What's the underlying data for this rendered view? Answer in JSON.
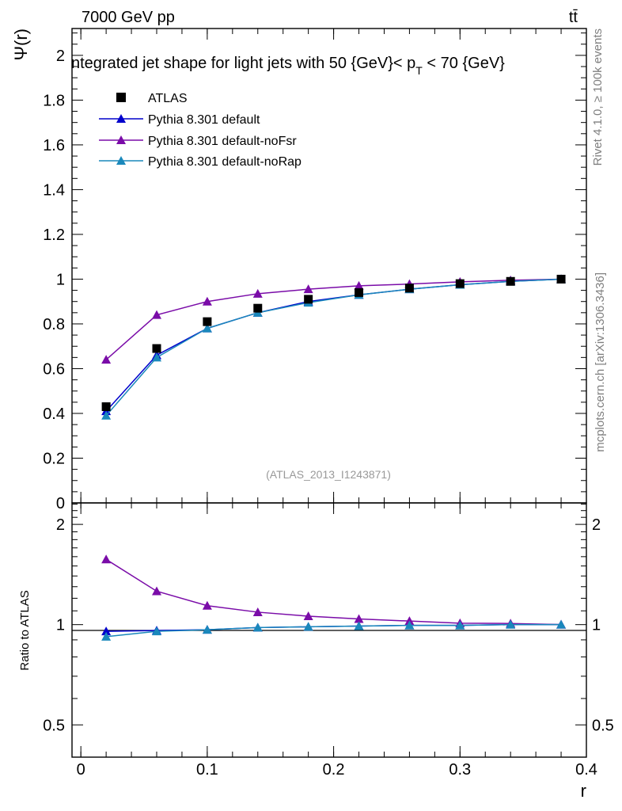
{
  "header": {
    "left": "7000 GeV pp",
    "right": "tt̄"
  },
  "side_labels": {
    "rivet": "Rivet 4.1.0, ≥ 100k events",
    "mcplots": "mcplots.cern.ch [arXiv:1306.3436]"
  },
  "chart_data": {
    "type": "line",
    "title_parts": {
      "before": "ntegrated jet shape for light jets with 50 {GeV}< p",
      "sub": "T",
      "after": " < 70 {GeV}"
    },
    "analysis_id": "(ATLAS_2013_I1243871)",
    "xlabel": "r",
    "ylabel_main": "Ψ(r)",
    "ylabel_ratio": "Ratio to ATLAS",
    "xlim": [
      -0.007,
      0.4
    ],
    "ylim_main": [
      0,
      2.12
    ],
    "ylim_ratio": [
      0.4,
      2.32
    ],
    "x_ticks": [
      0,
      0.1,
      0.2,
      0.3,
      0.4
    ],
    "x_tick_labels": [
      "0",
      "0.1",
      "0.2",
      "0.3",
      "0.4"
    ],
    "y_ticks_main": [
      0,
      0.2,
      0.4,
      0.6,
      0.8,
      1,
      1.2,
      1.4,
      1.6,
      1.8,
      2
    ],
    "y_tick_labels_main": [
      "0",
      "0.2",
      "0.4",
      "0.6",
      "0.8",
      "1",
      "1.2",
      "1.4",
      "1.6",
      "1.8",
      "2"
    ],
    "y_ticks_ratio": [
      0.5,
      1,
      2
    ],
    "y_tick_labels_ratio": [
      "0.5",
      "1",
      "2"
    ],
    "x": [
      0.02,
      0.06,
      0.1,
      0.14,
      0.18,
      0.22,
      0.26,
      0.3,
      0.34,
      0.38
    ],
    "data": {
      "name": "ATLAS",
      "color": "#000000",
      "values": [
        0.43,
        0.69,
        0.81,
        0.87,
        0.91,
        0.94,
        0.96,
        0.98,
        0.99,
        1.0
      ]
    },
    "series": [
      {
        "name": "Pythia 8.301 default",
        "color": "#0000cc",
        "values": [
          0.41,
          0.66,
          0.78,
          0.85,
          0.9,
          0.93,
          0.955,
          0.975,
          0.99,
          1.0
        ],
        "ratio": [
          0.955,
          0.96,
          0.965,
          0.98,
          0.985,
          0.99,
          0.995,
          0.995,
          1.0,
          1.0
        ]
      },
      {
        "name": "Pythia 8.301 default-noFsr",
        "color": "#7a0ca8",
        "values": [
          0.64,
          0.84,
          0.9,
          0.935,
          0.955,
          0.97,
          0.978,
          0.988,
          0.995,
          1.0
        ],
        "ratio": [
          1.57,
          1.26,
          1.14,
          1.09,
          1.06,
          1.04,
          1.025,
          1.01,
          1.008,
          1.0
        ]
      },
      {
        "name": "Pythia 8.301 default-noRap",
        "color": "#1a88bb",
        "values": [
          0.39,
          0.65,
          0.78,
          0.85,
          0.895,
          0.93,
          0.955,
          0.975,
          0.99,
          1.0
        ],
        "ratio": [
          0.92,
          0.955,
          0.965,
          0.98,
          0.985,
          0.99,
          0.995,
          0.995,
          1.0,
          1.0
        ]
      }
    ]
  }
}
